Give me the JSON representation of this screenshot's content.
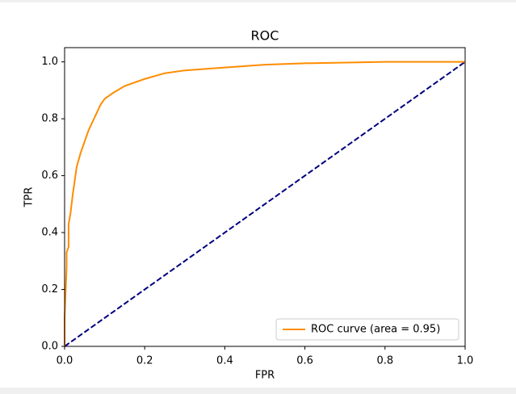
{
  "chart_data": {
    "type": "line",
    "title": "ROC",
    "xlabel": "FPR",
    "ylabel": "TPR",
    "series": [
      {
        "name": "ROC curve (area = 0.95)",
        "color": "#ff8c00",
        "style": "solid",
        "x": [
          0,
          0,
          0.005,
          0.005,
          0.01,
          0.01,
          0.015,
          0.02,
          0.025,
          0.03,
          0.04,
          0.05,
          0.06,
          0.07,
          0.08,
          0.09,
          0.1,
          0.12,
          0.15,
          0.2,
          0.25,
          0.3,
          0.4,
          0.5,
          0.6,
          0.8,
          1
        ],
        "values": [
          0,
          0.1,
          0.28,
          0.33,
          0.35,
          0.43,
          0.47,
          0.53,
          0.58,
          0.63,
          0.68,
          0.72,
          0.76,
          0.79,
          0.82,
          0.85,
          0.87,
          0.89,
          0.915,
          0.94,
          0.96,
          0.97,
          0.98,
          0.99,
          0.995,
          1,
          1
        ]
      },
      {
        "color": "#000080",
        "style": "dashed",
        "x": [
          0,
          1
        ],
        "values": [
          0,
          1
        ]
      }
    ],
    "xlim": [
      0,
      1
    ],
    "ylim": [
      0,
      1.05
    ],
    "xticks": [
      {
        "value": 0,
        "label": "0.0"
      },
      0.2,
      0.4,
      0.6,
      0.8,
      {
        "value": 1,
        "label": "1.0"
      }
    ],
    "yticks": [
      {
        "value": 0,
        "label": "0.0"
      },
      0.2,
      0.4,
      0.6,
      0.8,
      {
        "value": 1,
        "label": "1.0"
      }
    ],
    "legend": "lower right",
    "grid": false
  }
}
